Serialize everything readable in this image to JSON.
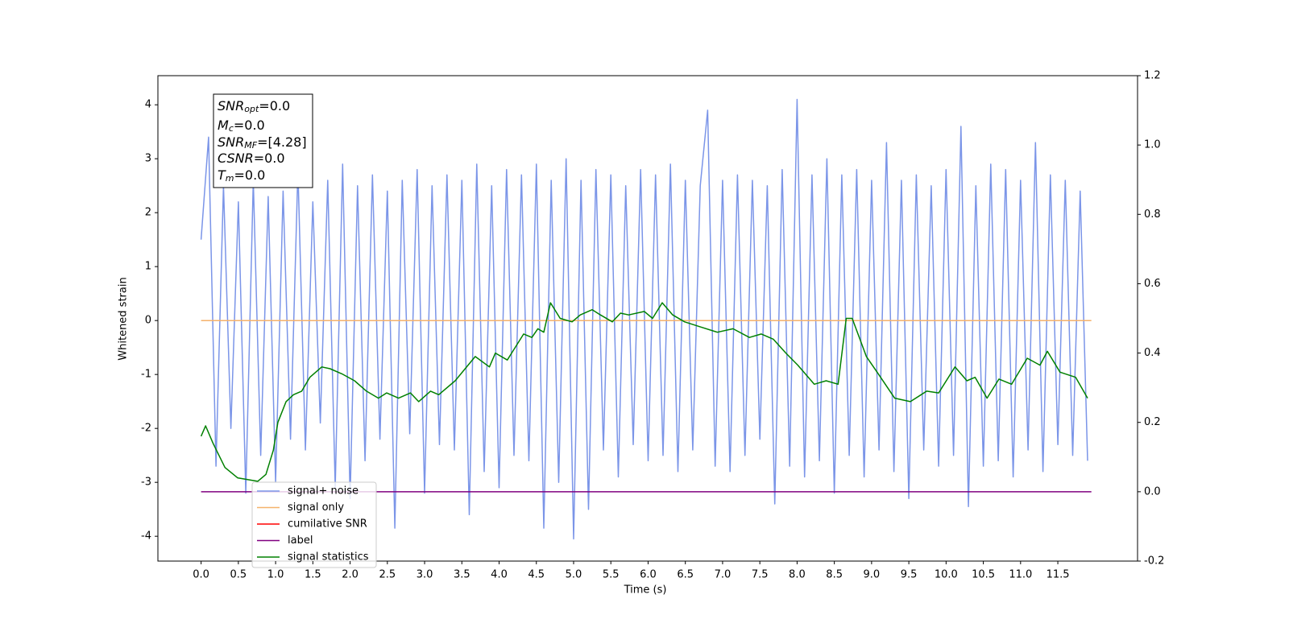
{
  "chart_data": {
    "type": "line",
    "xlabel": "Time (s)",
    "ylabel": "Whitened strain",
    "xlim": [
      -0.58,
      12.57
    ],
    "ylim": [
      -4.46,
      4.54
    ],
    "y2lim": [
      -0.2,
      1.2
    ],
    "xticks": [
      {
        "value": 0,
        "label": "0.0"
      },
      0.5,
      {
        "value": 1,
        "label": "1.0"
      },
      1.5,
      {
        "value": 2,
        "label": "2.0"
      },
      2.5,
      {
        "value": 3,
        "label": "3.0"
      },
      3.5,
      {
        "value": 4,
        "label": "4.0"
      },
      4.5,
      {
        "value": 5,
        "label": "5.0"
      },
      5.5,
      {
        "value": 6,
        "label": "6.0"
      },
      6.5,
      {
        "value": 7,
        "label": "7.0"
      },
      7.5,
      {
        "value": 8,
        "label": "8.0"
      },
      8.5,
      {
        "value": 9,
        "label": "9.0"
      },
      9.5,
      {
        "value": 10,
        "label": "10.0"
      },
      10.5,
      {
        "value": 11,
        "label": "11.0"
      },
      11.5
    ],
    "yticks": [
      -4,
      -3,
      -2,
      -1,
      0,
      1,
      2,
      3,
      4
    ],
    "y2ticks": [
      -0.2,
      {
        "value": 0,
        "label": "0.0"
      },
      0.2,
      0.4,
      0.6,
      0.8,
      {
        "value": 1,
        "label": "1.0"
      },
      1.2
    ],
    "legend": "lower left",
    "annotations": [
      {
        "name": "SNR",
        "sub": "opt",
        "text": "=0.0"
      },
      {
        "name": "M",
        "sub": "c",
        "text": "=0.0"
      },
      {
        "name": "SNR",
        "sub": "MF",
        "text": "=[4.28]"
      },
      {
        "name": "CSNR",
        "text": "=0.0"
      },
      {
        "name": "T",
        "sub": "m",
        "text": "=0.0"
      }
    ],
    "series": [
      {
        "name": "signal+ noise",
        "color": "#7b95e8",
        "x": [
          0,
          0.1,
          0.2,
          0.3,
          0.4,
          0.5,
          0.6,
          0.7,
          0.8,
          0.9,
          1,
          1.1,
          1.2,
          1.3,
          1.4,
          1.5,
          1.6,
          1.7,
          1.8,
          1.9,
          2,
          2.1,
          2.2,
          2.3,
          2.4,
          2.5,
          2.6,
          2.7,
          2.8,
          2.9,
          3,
          3.1,
          3.2,
          3.3,
          3.4,
          3.5,
          3.6,
          3.7,
          3.8,
          3.9,
          4,
          4.1,
          4.2,
          4.3,
          4.4,
          4.5,
          4.6,
          4.7,
          4.8,
          4.9,
          5,
          5.1,
          5.2,
          5.3,
          5.4,
          5.5,
          5.6,
          5.7,
          5.8,
          5.9,
          6,
          6.1,
          6.2,
          6.3,
          6.4,
          6.5,
          6.6,
          6.7,
          6.8,
          6.9,
          7,
          7.1,
          7.2,
          7.3,
          7.4,
          7.5,
          7.6,
          7.7,
          7.8,
          7.9,
          8,
          8.1,
          8.2,
          8.3,
          8.4,
          8.5,
          8.6,
          8.7,
          8.8,
          8.9,
          9,
          9.1,
          9.2,
          9.3,
          9.4,
          9.5,
          9.6,
          9.7,
          9.8,
          9.9,
          10,
          10.1,
          10.2,
          10.3,
          10.4,
          10.5,
          10.6,
          10.7,
          10.8,
          10.9,
          11,
          11.1,
          11.2,
          11.3,
          11.4,
          11.5,
          11.6,
          11.7,
          11.8,
          11.9
        ],
        "values": [
          1.5,
          3.4,
          -2.7,
          2.5,
          -2.0,
          2.2,
          -3.2,
          2.6,
          -2.5,
          2.3,
          -3.0,
          2.4,
          -2.2,
          2.8,
          -2.4,
          2.2,
          -1.9,
          2.6,
          -3.1,
          2.9,
          -3.3,
          2.5,
          -2.6,
          2.7,
          -2.2,
          2.4,
          -3.85,
          2.6,
          -2.1,
          2.8,
          -3.2,
          2.5,
          -2.3,
          2.7,
          -2.4,
          2.6,
          -3.6,
          2.9,
          -2.8,
          2.5,
          -3.1,
          2.8,
          -2.5,
          2.7,
          -2.6,
          2.9,
          -3.85,
          2.6,
          -3.0,
          3.0,
          -4.05,
          2.6,
          -3.5,
          2.8,
          -2.4,
          2.7,
          -2.9,
          2.5,
          -2.3,
          2.8,
          -2.6,
          2.7,
          -2.5,
          2.9,
          -2.8,
          2.6,
          -2.4,
          2.5,
          3.9,
          -2.7,
          2.6,
          -2.8,
          2.7,
          -2.5,
          2.6,
          -2.2,
          2.5,
          -3.4,
          2.8,
          -2.7,
          4.1,
          -2.9,
          2.7,
          -2.6,
          3.0,
          -3.2,
          2.7,
          -2.5,
          2.8,
          -2.9,
          2.6,
          -2.4,
          3.3,
          -2.8,
          2.6,
          -3.3,
          2.7,
          -2.4,
          2.5,
          -2.7,
          2.8,
          -2.5,
          3.6,
          -3.45,
          2.5,
          -2.7,
          2.9,
          -2.6,
          2.8,
          -2.9,
          2.6,
          -2.4,
          3.3,
          -2.8,
          2.7,
          -2.3,
          2.6,
          -2.5,
          2.4,
          -2.6
        ]
      },
      {
        "name": "signal only",
        "color": "#f5b26b",
        "x": [
          0,
          11.95
        ],
        "values": [
          0,
          0
        ]
      },
      {
        "name": "cumilative SNR",
        "color": "#ff0000",
        "x": [],
        "values": []
      },
      {
        "name": "label",
        "color": "#800080",
        "axis": "y2",
        "x": [
          0,
          11.95
        ],
        "values": [
          0,
          0
        ]
      },
      {
        "name": "signal statistics",
        "color": "#008000",
        "axis": "y2",
        "x": [
          0,
          0.06,
          0.16,
          0.32,
          0.49,
          0.76,
          0.87,
          0.97,
          1.03,
          1.14,
          1.24,
          1.35,
          1.46,
          1.62,
          1.73,
          1.89,
          2.06,
          2.22,
          2.38,
          2.49,
          2.65,
          2.81,
          2.92,
          3.08,
          3.19,
          3.41,
          3.68,
          3.87,
          3.95,
          4.11,
          4.33,
          4.44,
          4.52,
          4.6,
          4.69,
          4.82,
          4.98,
          5.09,
          5.25,
          5.36,
          5.52,
          5.63,
          5.74,
          5.95,
          6.06,
          6.19,
          6.33,
          6.49,
          6.71,
          6.93,
          7.14,
          7.36,
          7.52,
          7.68,
          7.85,
          8.01,
          8.23,
          8.39,
          8.55,
          8.66,
          8.74,
          8.93,
          9.09,
          9.31,
          9.52,
          9.74,
          9.9,
          10.12,
          10.28,
          10.39,
          10.55,
          10.71,
          10.88,
          11.09,
          11.26,
          11.36,
          11.53,
          11.74,
          11.9
        ],
        "values": [
          0.16,
          0.19,
          0.14,
          0.07,
          0.04,
          0.03,
          0.05,
          0.12,
          0.2,
          0.26,
          0.28,
          0.29,
          0.33,
          0.36,
          0.355,
          0.34,
          0.32,
          0.29,
          0.27,
          0.285,
          0.27,
          0.285,
          0.26,
          0.29,
          0.28,
          0.32,
          0.39,
          0.36,
          0.4,
          0.38,
          0.455,
          0.445,
          0.47,
          0.46,
          0.545,
          0.5,
          0.49,
          0.51,
          0.525,
          0.51,
          0.49,
          0.515,
          0.51,
          0.52,
          0.5,
          0.545,
          0.51,
          0.49,
          0.475,
          0.46,
          0.47,
          0.445,
          0.455,
          0.44,
          0.4,
          0.365,
          0.31,
          0.32,
          0.31,
          0.5,
          0.5,
          0.39,
          0.34,
          0.27,
          0.26,
          0.29,
          0.285,
          0.36,
          0.32,
          0.33,
          0.27,
          0.325,
          0.31,
          0.385,
          0.365,
          0.405,
          0.345,
          0.33,
          0.27
        ]
      }
    ]
  }
}
